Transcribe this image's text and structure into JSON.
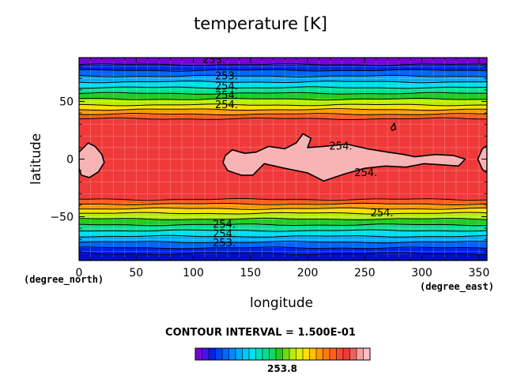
{
  "chart_data": {
    "type": "heatmap",
    "title": "temperature [K]",
    "xlabel": "longitude",
    "ylabel": "latitude",
    "x_unit": "(degree_east)",
    "y_unit": "(degree_north)",
    "xlim": [
      0,
      357
    ],
    "ylim": [
      -88,
      88
    ],
    "x_ticks": [
      0,
      50,
      100,
      150,
      200,
      250,
      300,
      350
    ],
    "y_ticks": [
      -50,
      0,
      50
    ],
    "contour_interval_text": "CONTOUR INTERVAL = 1.500E-01",
    "colorbar_label": "253.8",
    "contour_labels": [
      {
        "text": "253.",
        "lon": 108,
        "lat": 86
      },
      {
        "text": "253.",
        "lon": 119,
        "lat": 72
      },
      {
        "text": "254.",
        "lon": 119,
        "lat": 63
      },
      {
        "text": "254.",
        "lon": 119,
        "lat": 55
      },
      {
        "text": "254.",
        "lon": 119,
        "lat": 47
      },
      {
        "text": "254.",
        "lon": 219,
        "lat": 11
      },
      {
        "text": "254.",
        "lon": 241,
        "lat": -12
      },
      {
        "text": "254.",
        "lon": 255,
        "lat": -47
      },
      {
        "text": "254.",
        "lon": 117,
        "lat": -57
      },
      {
        "text": "254.",
        "lon": 117,
        "lat": -65
      },
      {
        "text": "253.",
        "lon": 117,
        "lat": -73
      }
    ],
    "bands": [
      {
        "lat": [
          82,
          88
        ],
        "color": "#7a00d8"
      },
      {
        "lat": [
          77,
          82
        ],
        "color": "#0022e6"
      },
      {
        "lat": [
          72,
          77
        ],
        "color": "#0066ff"
      },
      {
        "lat": [
          67,
          72
        ],
        "color": "#00aaff"
      },
      {
        "lat": [
          62,
          67
        ],
        "color": "#00e0ee"
      },
      {
        "lat": [
          57,
          62
        ],
        "color": "#00e090"
      },
      {
        "lat": [
          52,
          57
        ],
        "color": "#22cc22"
      },
      {
        "lat": [
          47,
          52
        ],
        "color": "#b8ee00"
      },
      {
        "lat": [
          43,
          47
        ],
        "color": "#ffe000"
      },
      {
        "lat": [
          39,
          43
        ],
        "color": "#ff9900"
      },
      {
        "lat": [
          35,
          39
        ],
        "color": "#ff6020"
      },
      {
        "lat": [
          -35,
          35
        ],
        "color": "#f03a3a"
      },
      {
        "lat": [
          -39,
          -35
        ],
        "color": "#ff6020"
      },
      {
        "lat": [
          -43,
          -39
        ],
        "color": "#ff9900"
      },
      {
        "lat": [
          -47,
          -43
        ],
        "color": "#ffe000"
      },
      {
        "lat": [
          -52,
          -47
        ],
        "color": "#b8ee00"
      },
      {
        "lat": [
          -57,
          -52
        ],
        "color": "#22cc22"
      },
      {
        "lat": [
          -62,
          -57
        ],
        "color": "#00e090"
      },
      {
        "lat": [
          -67,
          -62
        ],
        "color": "#00e0ee"
      },
      {
        "lat": [
          -72,
          -67
        ],
        "color": "#00aaff"
      },
      {
        "lat": [
          -77,
          -72
        ],
        "color": "#0066ff"
      },
      {
        "lat": [
          -82,
          -77
        ],
        "color": "#0022e6"
      },
      {
        "lat": [
          -88,
          -82
        ],
        "color": "#0010c0"
      }
    ],
    "contour_lats": [
      82,
      77,
      72,
      67,
      62,
      57,
      52,
      47,
      43,
      39,
      35,
      -35,
      -39,
      -43,
      -47,
      -52,
      -57,
      -62,
      -67,
      -72,
      -77,
      -82
    ],
    "pink_regions": [
      [
        [
          0,
          6
        ],
        [
          8,
          14
        ],
        [
          14,
          11
        ],
        [
          20,
          4
        ],
        [
          22,
          -3
        ],
        [
          17,
          -11
        ],
        [
          9,
          -16
        ],
        [
          2,
          -14
        ],
        [
          0,
          -8
        ]
      ],
      [
        [
          128,
          3
        ],
        [
          134,
          8
        ],
        [
          145,
          5
        ],
        [
          155,
          6
        ],
        [
          166,
          11
        ],
        [
          180,
          9
        ],
        [
          190,
          14
        ],
        [
          196,
          22
        ],
        [
          203,
          18
        ],
        [
          200,
          10
        ],
        [
          214,
          11
        ],
        [
          234,
          13
        ],
        [
          252,
          9
        ],
        [
          270,
          6
        ],
        [
          284,
          4
        ],
        [
          294,
          2
        ],
        [
          312,
          4
        ],
        [
          328,
          3
        ],
        [
          338,
          0
        ],
        [
          332,
          -6
        ],
        [
          318,
          -5
        ],
        [
          302,
          -4
        ],
        [
          286,
          -7
        ],
        [
          268,
          -6
        ],
        [
          250,
          -8
        ],
        [
          232,
          -13
        ],
        [
          214,
          -19
        ],
        [
          200,
          -12
        ],
        [
          180,
          -8
        ],
        [
          162,
          -4
        ],
        [
          152,
          -14
        ],
        [
          142,
          -14
        ],
        [
          130,
          -10
        ],
        [
          126,
          -3
        ]
      ],
      [
        [
          349,
          0
        ],
        [
          353,
          9
        ],
        [
          357,
          12
        ],
        [
          357,
          -12
        ],
        [
          353,
          -9
        ]
      ]
    ],
    "small_contours": [
      [
        [
          273,
          27
        ],
        [
          276,
          31
        ],
        [
          277,
          26
        ],
        [
          274,
          25
        ]
      ]
    ],
    "colorbar_colors": [
      "#7a00d8",
      "#4a10e8",
      "#0022e6",
      "#0044f0",
      "#0066ff",
      "#0088ff",
      "#00aaff",
      "#00c8f8",
      "#00e0ee",
      "#00e0b8",
      "#00e090",
      "#10d860",
      "#22cc22",
      "#70dc10",
      "#b8ee00",
      "#e0f000",
      "#ffe000",
      "#ffc000",
      "#ff9900",
      "#ff7a10",
      "#ff6020",
      "#f84a30",
      "#f03a3a",
      "#f06060",
      "#f8a0a0",
      "#ffc0c8"
    ]
  }
}
